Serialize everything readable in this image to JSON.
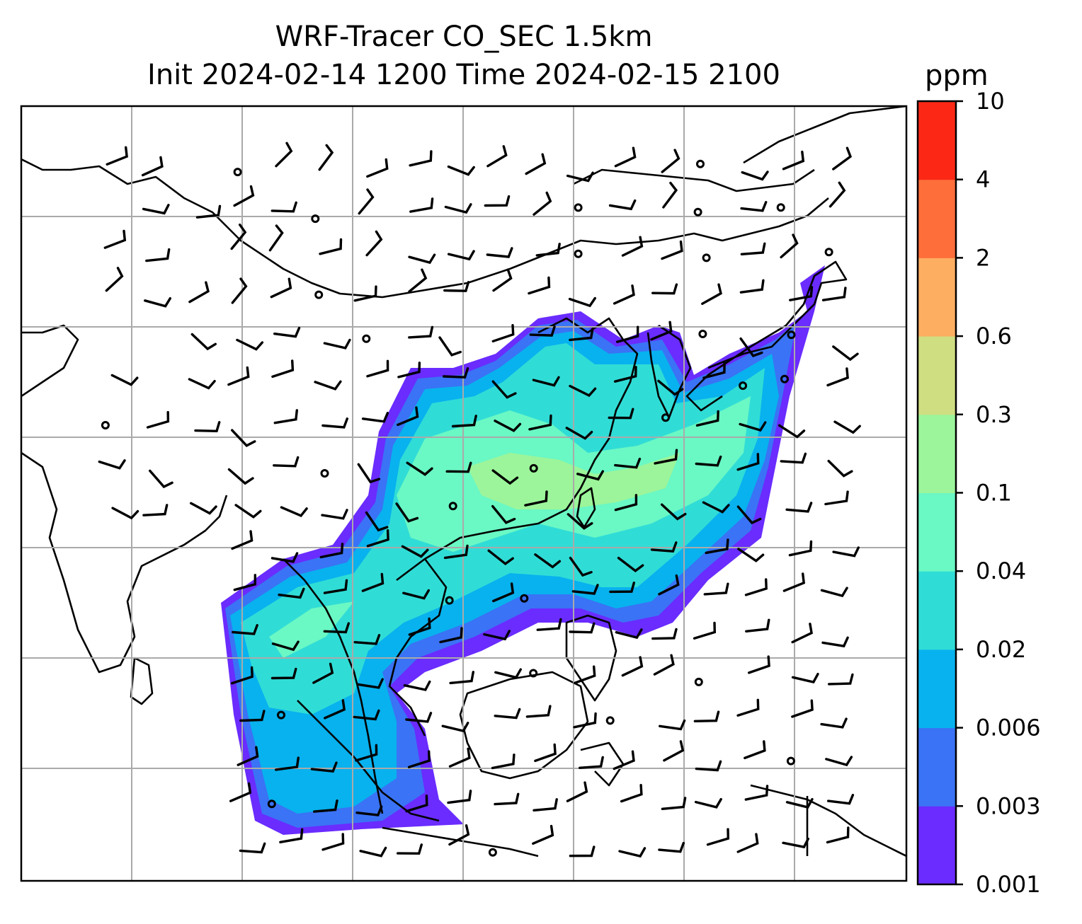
{
  "title": {
    "line1": "WRF-Tracer CO_SEC 1.5km",
    "line2": "Init 2024-02-14 1200 Time 2024-02-15 2100"
  },
  "colorbar": {
    "unit": "ppm",
    "levels": [
      "0.001",
      "0.003",
      "0.006",
      "0.02",
      "0.04",
      "0.1",
      "0.3",
      "0.6",
      "2",
      "4",
      "10"
    ],
    "colors": [
      "#6a2cff",
      "#3a73f5",
      "#08b2ee",
      "#30ddd6",
      "#6af8c4",
      "#9cf59a",
      "#d0de82",
      "#fdae61",
      "#fd6e3a",
      "#fc2815"
    ]
  },
  "map": {
    "gridlines": true,
    "plume_colors": {
      "lowest": "#6a2cff",
      "low": "#3a73f5",
      "mid": "#08b2ee",
      "midhigh": "#30ddd6",
      "high": "#6af8c4",
      "peak": "#9cf59a"
    },
    "coastline_color": "#000000",
    "wind_barb_color": "#000000"
  }
}
